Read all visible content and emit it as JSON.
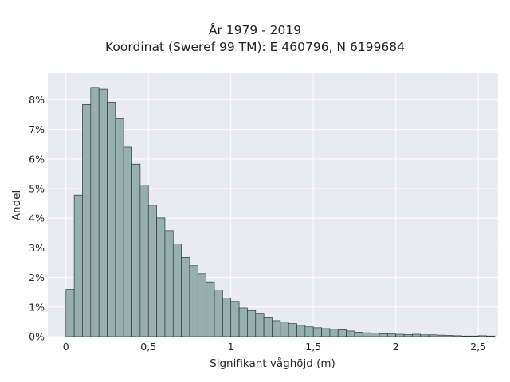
{
  "chart_data": {
    "type": "bar",
    "title": "År 1979 - 2019",
    "subtitle": "Koordinat (Sweref 99 TM): E 460796, N 6199684",
    "xlabel": "Signifikant våghöjd (m)",
    "ylabel": "Andel",
    "xlim": [
      -0.11,
      2.62
    ],
    "ylim": [
      0,
      8.9
    ],
    "x_ticks": [
      0,
      0.5,
      1,
      1.5,
      2,
      2.5
    ],
    "x_tick_labels": [
      "0",
      "0,5",
      "1",
      "1,5",
      "2",
      "2,5"
    ],
    "y_ticks": [
      0,
      1,
      2,
      3,
      4,
      5,
      6,
      7,
      8
    ],
    "y_tick_labels": [
      "0%",
      "1%",
      "2%",
      "3%",
      "4%",
      "5%",
      "6%",
      "7%",
      "8%"
    ],
    "bin_start": 0.025,
    "bin_width": 0.05,
    "values": [
      1.6,
      4.78,
      7.84,
      8.42,
      8.36,
      7.92,
      7.38,
      6.4,
      5.83,
      5.12,
      4.44,
      4.01,
      3.58,
      3.13,
      2.68,
      2.4,
      2.13,
      1.85,
      1.57,
      1.3,
      1.19,
      0.97,
      0.88,
      0.79,
      0.66,
      0.54,
      0.5,
      0.44,
      0.38,
      0.33,
      0.3,
      0.27,
      0.25,
      0.23,
      0.19,
      0.15,
      0.13,
      0.12,
      0.1,
      0.09,
      0.08,
      0.07,
      0.08,
      0.06,
      0.06,
      0.05,
      0.04,
      0.03,
      0.02,
      0.02,
      0.03,
      0.02
    ],
    "grid": true,
    "colors": {
      "bar_fill": "#95B0AE",
      "bar_edge": "#2B3A38",
      "plot_bg": "#EAEAF2",
      "grid": "#FFFFFF"
    }
  }
}
